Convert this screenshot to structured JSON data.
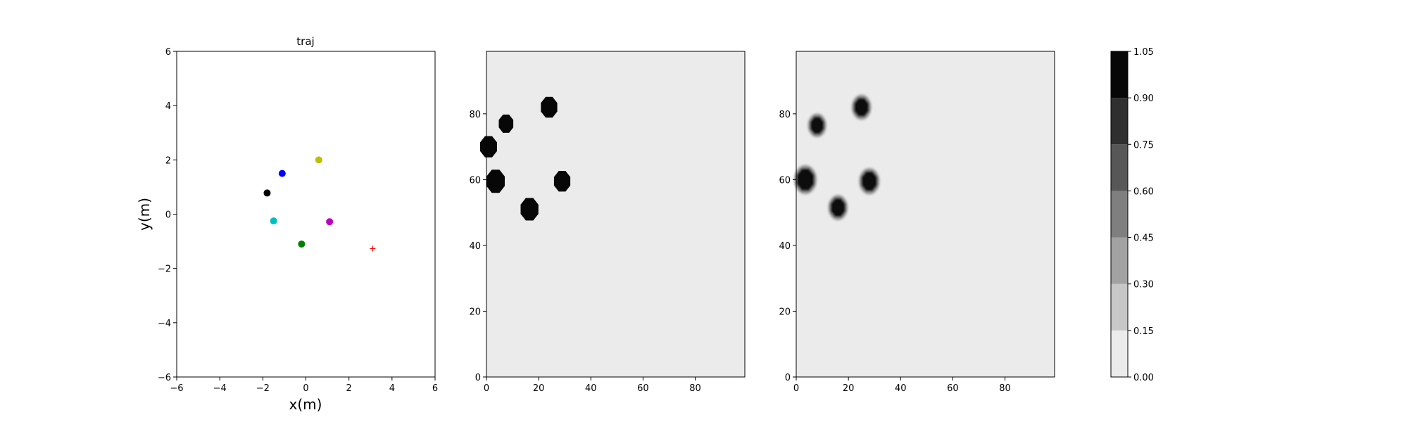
{
  "chart_data": [
    {
      "type": "scatter",
      "title": "traj",
      "xlabel": "x(m)",
      "ylabel": "y(m)",
      "xlim": [
        -6,
        6
      ],
      "ylim": [
        -6,
        6
      ],
      "xticks": [
        -6,
        -4,
        -2,
        0,
        2,
        4,
        6
      ],
      "yticks": [
        -6,
        -4,
        -2,
        0,
        2,
        4,
        6
      ],
      "grid": false,
      "points": [
        {
          "x": -1.1,
          "y": 1.5,
          "color": "#0000ff",
          "marker": "dot"
        },
        {
          "x": 0.6,
          "y": 2.0,
          "color": "#bfbf00",
          "marker": "dot"
        },
        {
          "x": -1.8,
          "y": 0.78,
          "color": "#000000",
          "marker": "dot"
        },
        {
          "x": -1.5,
          "y": -0.25,
          "color": "#00bfbf",
          "marker": "dot"
        },
        {
          "x": 1.1,
          "y": -0.28,
          "color": "#bf00bf",
          "marker": "dot"
        },
        {
          "x": -0.2,
          "y": -1.1,
          "color": "#008000",
          "marker": "dot"
        },
        {
          "x": 3.1,
          "y": -1.27,
          "color": "#ff0000",
          "marker": "plus"
        }
      ]
    },
    {
      "type": "heatmap",
      "xlim": [
        0,
        99
      ],
      "ylim": [
        0,
        99
      ],
      "xticks": [
        0,
        20,
        40,
        60,
        80
      ],
      "yticks": [
        0,
        20,
        40,
        60,
        80
      ],
      "background_value": 0.05,
      "blobs": [
        {
          "x": 24,
          "y": 82,
          "r": 3.4,
          "value": 1.0
        },
        {
          "x": 7.5,
          "y": 77,
          "r": 3.0,
          "value": 1.0
        },
        {
          "x": 0.8,
          "y": 70,
          "r": 3.5,
          "value": 1.0
        },
        {
          "x": 3.5,
          "y": 59.5,
          "r": 3.8,
          "value": 1.0
        },
        {
          "x": 29,
          "y": 59.5,
          "r": 3.4,
          "value": 1.0
        },
        {
          "x": 16.5,
          "y": 51,
          "r": 3.7,
          "value": 1.0
        }
      ]
    },
    {
      "type": "heatmap",
      "xlim": [
        0,
        99
      ],
      "ylim": [
        0,
        99
      ],
      "xticks": [
        0,
        20,
        40,
        60,
        80
      ],
      "yticks": [
        0,
        20,
        40,
        60,
        80
      ],
      "background_value": 0.05,
      "blobs": [
        {
          "x": 25,
          "y": 82,
          "r": 3.2,
          "value": 1.0
        },
        {
          "x": 8,
          "y": 76.5,
          "r": 3.0,
          "value": 1.0
        },
        {
          "x": 3.5,
          "y": 60,
          "r": 3.8,
          "value": 1.0
        },
        {
          "x": 28,
          "y": 59.5,
          "r": 3.4,
          "value": 1.0
        },
        {
          "x": 16,
          "y": 51.5,
          "r": 3.2,
          "value": 1.0
        }
      ]
    }
  ],
  "colorbar": {
    "levels": [
      0.0,
      0.15,
      0.3,
      0.45,
      0.6,
      0.75,
      0.9,
      1.05
    ],
    "tick_labels": [
      "0.00",
      "0.15",
      "0.30",
      "0.45",
      "0.60",
      "0.75",
      "0.90",
      "1.05"
    ],
    "colors": [
      "#ebebeb",
      "#c7c7c7",
      "#a2a2a2",
      "#7f7f7f",
      "#575757",
      "#2f2f2f",
      "#070707"
    ]
  }
}
